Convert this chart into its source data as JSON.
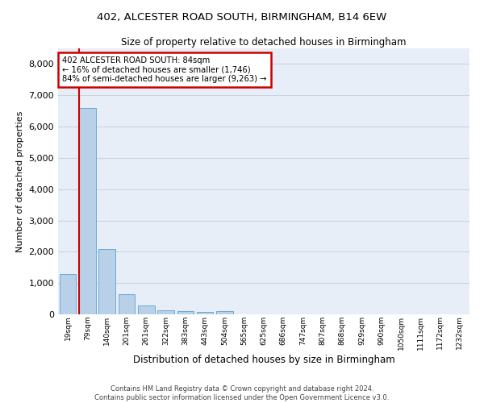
{
  "title1": "402, ALCESTER ROAD SOUTH, BIRMINGHAM, B14 6EW",
  "title2": "Size of property relative to detached houses in Birmingham",
  "xlabel": "Distribution of detached houses by size in Birmingham",
  "ylabel": "Number of detached properties",
  "categories": [
    "19sqm",
    "79sqm",
    "140sqm",
    "201sqm",
    "261sqm",
    "322sqm",
    "383sqm",
    "443sqm",
    "504sqm",
    "565sqm",
    "625sqm",
    "686sqm",
    "747sqm",
    "807sqm",
    "868sqm",
    "929sqm",
    "990sqm",
    "1050sqm",
    "1111sqm",
    "1172sqm",
    "1232sqm"
  ],
  "values": [
    1300,
    6600,
    2080,
    640,
    285,
    140,
    95,
    75,
    110,
    0,
    0,
    0,
    0,
    0,
    0,
    0,
    0,
    0,
    0,
    0,
    0
  ],
  "bar_color": "#b8d0e8",
  "bar_edge_color": "#6aaad4",
  "property_line_label": "402 ALCESTER ROAD SOUTH: 84sqm",
  "annotation_line1": "← 16% of detached houses are smaller (1,746)",
  "annotation_line2": "84% of semi-detached houses are larger (9,263) →",
  "annotation_box_color": "#ffffff",
  "annotation_box_edge_color": "#cc0000",
  "property_line_color": "#cc0000",
  "ylim": [
    0,
    8500
  ],
  "yticks": [
    0,
    1000,
    2000,
    3000,
    4000,
    5000,
    6000,
    7000,
    8000
  ],
  "grid_color": "#c8d4e4",
  "background_color": "#e8eef8",
  "footer1": "Contains HM Land Registry data © Crown copyright and database right 2024.",
  "footer2": "Contains public sector information licensed under the Open Government Licence v3.0."
}
